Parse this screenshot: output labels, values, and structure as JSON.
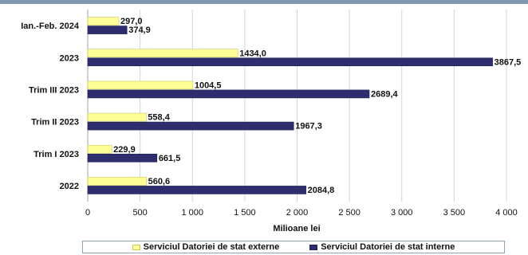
{
  "chart_data": {
    "type": "bar",
    "orientation": "horizontal",
    "categories": [
      "Ian.-Feb. 2024",
      "2023",
      "Trim III 2023",
      "Trim II 2023",
      "Trim I 2023",
      "2022"
    ],
    "series": [
      {
        "name": "Serviciul Datoriei de stat externe",
        "color": "#ffff99",
        "values": [
          297.0,
          1434.0,
          1004.5,
          558.4,
          229.9,
          560.6
        ],
        "labels": [
          "297,0",
          "1434,0",
          "1004,5",
          "558,4",
          "229,9",
          "560,6"
        ]
      },
      {
        "name": "Serviciul Datoriei de stat interne",
        "color": "#2e2e6e",
        "values": [
          374.9,
          3867.5,
          2689.4,
          1967.3,
          661.5,
          2084.8
        ],
        "labels": [
          "374,9",
          "3867,5",
          "2689,4",
          "1967,3",
          "661,5",
          "2084,8"
        ]
      }
    ],
    "xlim": [
      0,
      4000
    ],
    "xticks": [
      0,
      500,
      1000,
      1500,
      2000,
      2500,
      3000,
      3500,
      4000
    ],
    "xtick_labels": [
      "0",
      "500",
      "1 000",
      "1 500",
      "2 000",
      "2 500",
      "3 000",
      "3 500",
      "4 000"
    ],
    "xlabel": "Milioane lei",
    "grid": true,
    "legend_position": "bottom"
  }
}
